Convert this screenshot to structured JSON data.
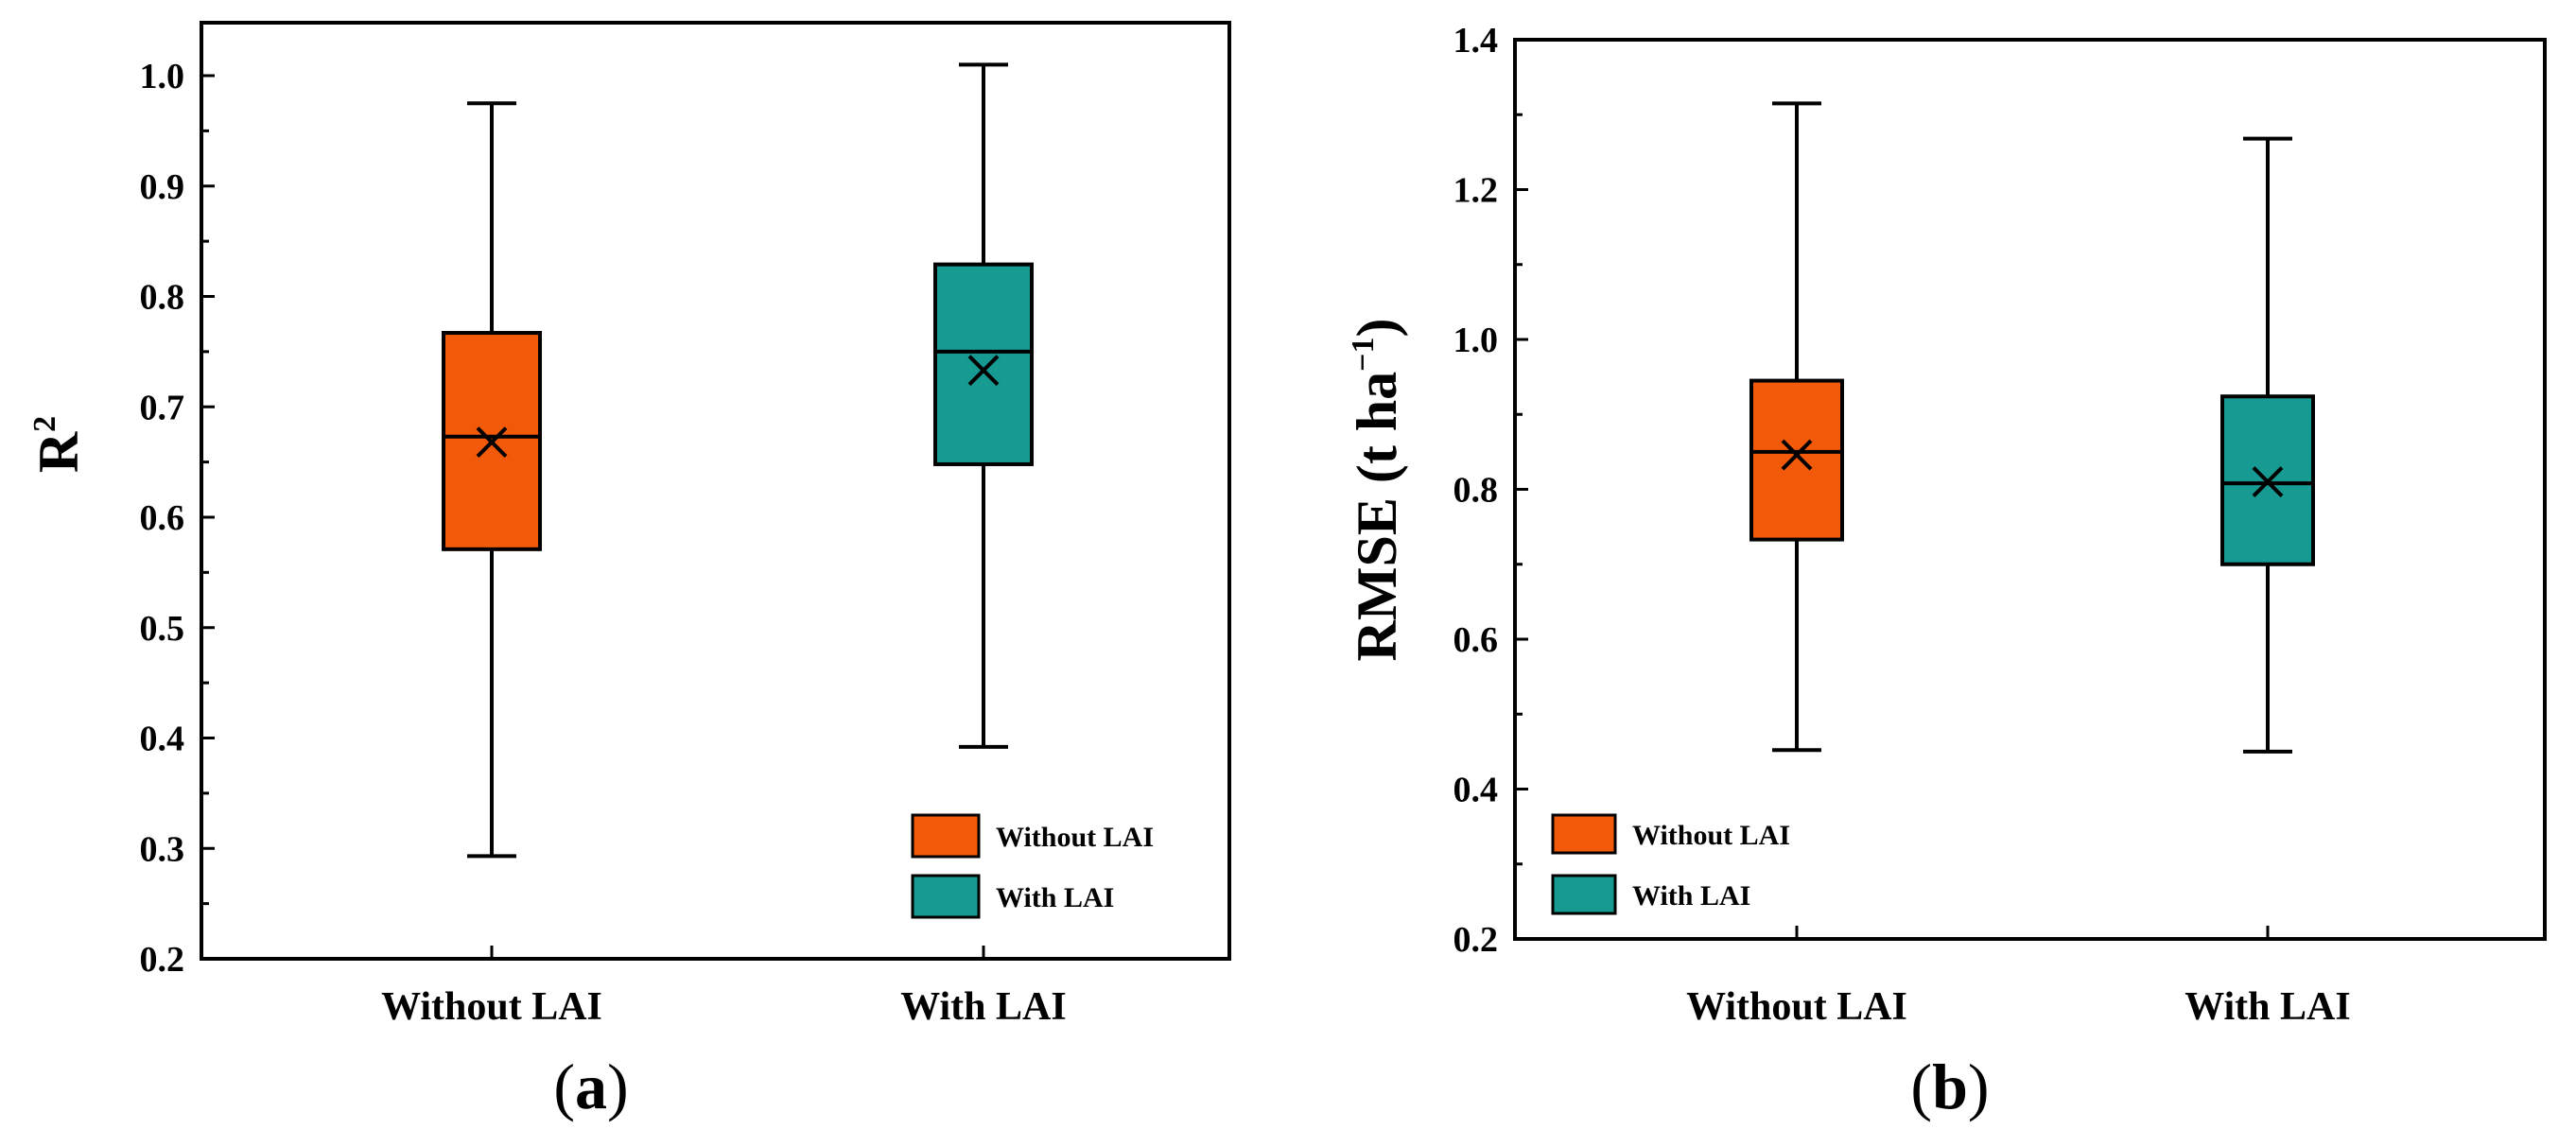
{
  "colors": {
    "without": "#F25A0A",
    "with": "#169A92"
  },
  "chart_data": [
    {
      "type": "box",
      "panel": "(a)",
      "panel_letter": "a",
      "ylabel": "R",
      "ylabel_sup": "2",
      "ylim": [
        0.2,
        1.05
      ],
      "yticks": [
        0.2,
        0.3,
        0.4,
        0.5,
        0.6,
        0.7,
        0.8,
        0.9,
        1.0
      ],
      "ytick_labels": [
        "0.2",
        "0.3",
        "0.4",
        "0.5",
        "0.6",
        "0.7",
        "0.8",
        "0.9",
        "1.0"
      ],
      "categories": [
        "Without LAI",
        "With LAI"
      ],
      "boxes": [
        {
          "name": "Without LAI",
          "whisker_low": 0.293,
          "q1": 0.571,
          "median": 0.673,
          "mean": 0.668,
          "q3": 0.767,
          "whisker_high": 0.975
        },
        {
          "name": "With LAI",
          "whisker_low": 0.392,
          "q1": 0.648,
          "median": 0.75,
          "mean": 0.733,
          "q3": 0.829,
          "whisker_high": 1.01
        }
      ],
      "legend": [
        "Without LAI",
        "With LAI"
      ],
      "legend_position": "bottom-right"
    },
    {
      "type": "box",
      "panel": "(b)",
      "panel_letter": "b",
      "ylabel": "RMSE (t ha",
      "ylabel_sup": "−1",
      "ylabel_close": ")",
      "ylim": [
        0.2,
        1.4
      ],
      "yticks": [
        0.2,
        0.4,
        0.6,
        0.8,
        1.0,
        1.2,
        1.4
      ],
      "ytick_labels": [
        "0.2",
        "0.4",
        "0.6",
        "0.8",
        "1.0",
        "1.2",
        "1.4"
      ],
      "categories": [
        "Without LAI",
        "With LAI"
      ],
      "boxes": [
        {
          "name": "Without LAI",
          "whisker_low": 0.452,
          "q1": 0.733,
          "median": 0.85,
          "mean": 0.846,
          "q3": 0.945,
          "whisker_high": 1.315
        },
        {
          "name": "With LAI",
          "whisker_low": 0.45,
          "q1": 0.7,
          "median": 0.808,
          "mean": 0.81,
          "q3": 0.924,
          "whisker_high": 1.268
        }
      ],
      "legend": [
        "Without LAI",
        "With LAI"
      ],
      "legend_position": "bottom-left"
    }
  ]
}
